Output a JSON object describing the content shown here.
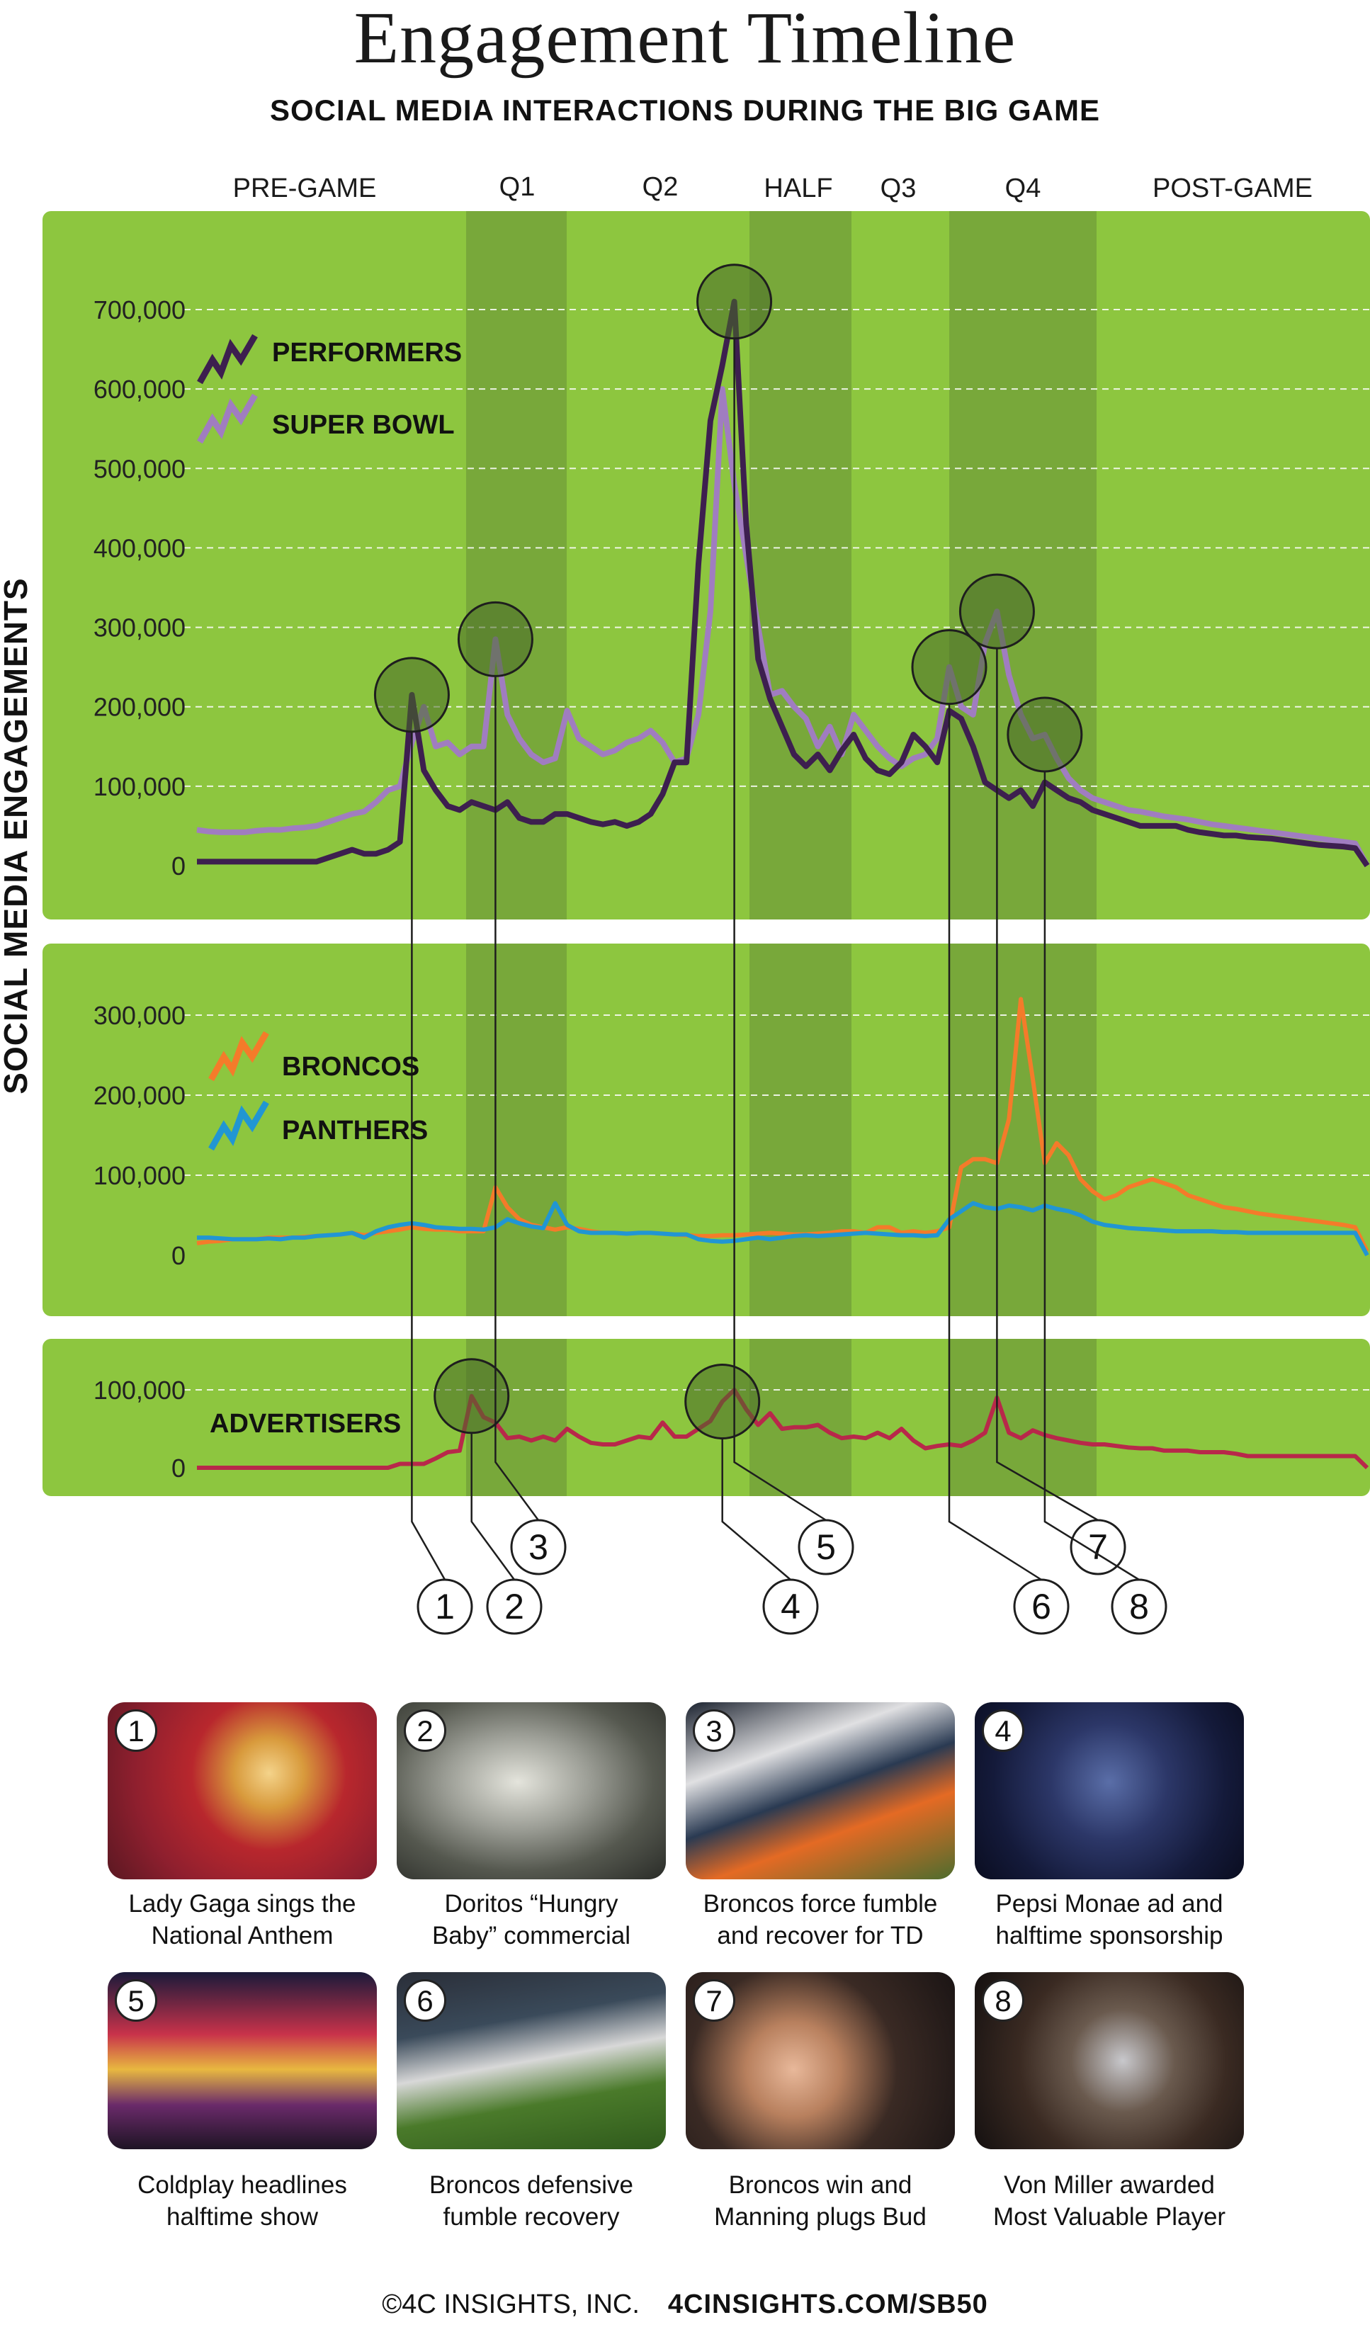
{
  "title": "Engagement Timeline",
  "subtitle": "SOCIAL MEDIA INTERACTIONS DURING THE BIG GAME",
  "y_axis_label": "SOCIAL MEDIA ENGAGEMENTS",
  "phases": [
    "PRE-GAME",
    "Q1",
    "Q2",
    "HALF",
    "Q3",
    "Q4",
    "POST-GAME"
  ],
  "colors": {
    "background_green": "#8dc63f",
    "band_green": "#78a83a",
    "performers": "#3d1f4f",
    "super_bowl": "#a07dc0",
    "broncos": "#f47b2a",
    "panthers": "#2196d3",
    "advertisers": "#b8284a"
  },
  "chart_data": [
    {
      "type": "line",
      "x": [
        0,
        1,
        2,
        3,
        4,
        5,
        6,
        7,
        8,
        9,
        10,
        11,
        12,
        13,
        14,
        15,
        16,
        17,
        18,
        19,
        20,
        21,
        22,
        23,
        24,
        25,
        26,
        27,
        28,
        29,
        30,
        31,
        32,
        33,
        34,
        35,
        36,
        37,
        38,
        39,
        40,
        41,
        42,
        43,
        44,
        45,
        46,
        47,
        48,
        49,
        50,
        51,
        52,
        53,
        54,
        55,
        56,
        57,
        58,
        59,
        60,
        61,
        62,
        63,
        64,
        65,
        66,
        67,
        68,
        69,
        70,
        71,
        72,
        73,
        74,
        75,
        76,
        77,
        78,
        79,
        80,
        81,
        82,
        83,
        84,
        85,
        86,
        87,
        88,
        89,
        90,
        91,
        92,
        93,
        94,
        95,
        96,
        97,
        98
      ],
      "series": [
        {
          "name": "PERFORMERS",
          "values": [
            5000,
            5000,
            5000,
            5000,
            5000,
            5000,
            5000,
            5000,
            5000,
            5000,
            5000,
            10000,
            15000,
            20000,
            15000,
            15000,
            20000,
            30000,
            215000,
            120000,
            95000,
            75000,
            70000,
            80000,
            75000,
            70000,
            80000,
            60000,
            55000,
            55000,
            65000,
            65000,
            60000,
            55000,
            52000,
            55000,
            50000,
            55000,
            65000,
            90000,
            130000,
            130000,
            380000,
            560000,
            630000,
            710000,
            430000,
            260000,
            210000,
            175000,
            140000,
            125000,
            140000,
            120000,
            145000,
            165000,
            135000,
            120000,
            115000,
            130000,
            165000,
            150000,
            130000,
            195000,
            185000,
            150000,
            105000,
            95000,
            85000,
            95000,
            75000,
            105000,
            95000,
            85000,
            80000,
            70000,
            65000,
            60000,
            55000,
            50000,
            50000,
            50000,
            50000,
            45000,
            42000,
            40000,
            38000,
            38000,
            36000,
            35000,
            34000,
            32000,
            30000,
            28000,
            26000,
            25000,
            24000,
            22000,
            0
          ]
        },
        {
          "name": "SUPER BOWL",
          "values": [
            45000,
            43000,
            42000,
            42000,
            42000,
            44000,
            45000,
            45000,
            47000,
            48000,
            50000,
            55000,
            60000,
            65000,
            68000,
            80000,
            95000,
            100000,
            155000,
            200000,
            150000,
            155000,
            140000,
            150000,
            150000,
            285000,
            190000,
            160000,
            140000,
            130000,
            135000,
            195000,
            160000,
            150000,
            140000,
            145000,
            155000,
            160000,
            170000,
            155000,
            130000,
            135000,
            190000,
            320000,
            600000,
            480000,
            390000,
            300000,
            215000,
            220000,
            200000,
            185000,
            150000,
            175000,
            140000,
            190000,
            170000,
            150000,
            135000,
            125000,
            135000,
            140000,
            160000,
            250000,
            200000,
            190000,
            280000,
            320000,
            240000,
            190000,
            160000,
            165000,
            135000,
            110000,
            95000,
            85000,
            80000,
            75000,
            70000,
            68000,
            65000,
            62000,
            60000,
            58000,
            55000,
            52000,
            50000,
            48000,
            46000,
            44000,
            42000,
            40000,
            38000,
            36000,
            34000,
            32000,
            30000,
            28000,
            0
          ]
        }
      ],
      "ylim": [
        0,
        750000
      ],
      "yticks": [
        "700,000",
        "600,000",
        "500,000",
        "400,000",
        "300,000",
        "200,000",
        "100,000",
        "0"
      ]
    },
    {
      "type": "line",
      "x": [
        0,
        1,
        2,
        3,
        4,
        5,
        6,
        7,
        8,
        9,
        10,
        11,
        12,
        13,
        14,
        15,
        16,
        17,
        18,
        19,
        20,
        21,
        22,
        23,
        24,
        25,
        26,
        27,
        28,
        29,
        30,
        31,
        32,
        33,
        34,
        35,
        36,
        37,
        38,
        39,
        40,
        41,
        42,
        43,
        44,
        45,
        46,
        47,
        48,
        49,
        50,
        51,
        52,
        53,
        54,
        55,
        56,
        57,
        58,
        59,
        60,
        61,
        62,
        63,
        64,
        65,
        66,
        67,
        68,
        69,
        70,
        71,
        72,
        73,
        74,
        75,
        76,
        77,
        78,
        79,
        80,
        81,
        82,
        83,
        84,
        85,
        86,
        87,
        88,
        89,
        90,
        91,
        92,
        93,
        94,
        95,
        96,
        97,
        98
      ],
      "series": [
        {
          "name": "BRONCOS",
          "values": [
            15000,
            17000,
            18000,
            20000,
            20000,
            20000,
            22000,
            22000,
            22000,
            23000,
            24000,
            25000,
            26000,
            28000,
            25000,
            28000,
            30000,
            32000,
            35000,
            33000,
            32000,
            32000,
            30000,
            30000,
            30000,
            85000,
            60000,
            45000,
            38000,
            35000,
            32000,
            35000,
            33000,
            30000,
            28000,
            28000,
            27000,
            28000,
            28000,
            27000,
            26000,
            25000,
            24000,
            24000,
            25000,
            25000,
            26000,
            27000,
            28000,
            27000,
            26000,
            26000,
            27000,
            28000,
            30000,
            30000,
            28000,
            35000,
            35000,
            28000,
            30000,
            28000,
            30000,
            35000,
            110000,
            120000,
            120000,
            115000,
            170000,
            320000,
            220000,
            115000,
            140000,
            125000,
            95000,
            80000,
            70000,
            75000,
            85000,
            90000,
            95000,
            90000,
            85000,
            75000,
            70000,
            65000,
            60000,
            58000,
            55000,
            52000,
            50000,
            48000,
            46000,
            44000,
            42000,
            40000,
            38000,
            35000,
            5000
          ]
        },
        {
          "name": "PANTHERS",
          "values": [
            22000,
            22000,
            21000,
            20000,
            20000,
            20000,
            21000,
            20000,
            22000,
            22000,
            24000,
            25000,
            26000,
            28000,
            22000,
            30000,
            35000,
            38000,
            40000,
            38000,
            35000,
            34000,
            33000,
            33000,
            32000,
            35000,
            45000,
            40000,
            36000,
            34000,
            65000,
            38000,
            30000,
            28000,
            28000,
            28000,
            27000,
            28000,
            28000,
            27000,
            26000,
            26000,
            20000,
            18000,
            17000,
            18000,
            20000,
            22000,
            20000,
            22000,
            24000,
            25000,
            24000,
            25000,
            26000,
            27000,
            28000,
            27000,
            26000,
            25000,
            25000,
            24000,
            25000,
            45000,
            55000,
            65000,
            60000,
            58000,
            62000,
            60000,
            56000,
            62000,
            58000,
            55000,
            50000,
            42000,
            38000,
            36000,
            34000,
            33000,
            32000,
            31000,
            30000,
            30000,
            30000,
            30000,
            29000,
            29000,
            28000,
            28000,
            28000,
            28000,
            28000,
            28000,
            28000,
            28000,
            28000,
            28000,
            0
          ]
        }
      ],
      "ylim": [
        0,
        340000
      ],
      "yticks": [
        "300,000",
        "200,000",
        "100,000",
        "0"
      ]
    },
    {
      "type": "line",
      "x": [
        0,
        1,
        2,
        3,
        4,
        5,
        6,
        7,
        8,
        9,
        10,
        11,
        12,
        13,
        14,
        15,
        16,
        17,
        18,
        19,
        20,
        21,
        22,
        23,
        24,
        25,
        26,
        27,
        28,
        29,
        30,
        31,
        32,
        33,
        34,
        35,
        36,
        37,
        38,
        39,
        40,
        41,
        42,
        43,
        44,
        45,
        46,
        47,
        48,
        49,
        50,
        51,
        52,
        53,
        54,
        55,
        56,
        57,
        58,
        59,
        60,
        61,
        62,
        63,
        64,
        65,
        66,
        67,
        68,
        69,
        70,
        71,
        72,
        73,
        74,
        75,
        76,
        77,
        78,
        79,
        80,
        81,
        82,
        83,
        84,
        85,
        86,
        87,
        88,
        89,
        90,
        91,
        92,
        93,
        94,
        95,
        96,
        97,
        98
      ],
      "series": [
        {
          "name": "ADVERTISERS",
          "values": [
            0,
            0,
            0,
            0,
            0,
            0,
            0,
            0,
            0,
            0,
            0,
            0,
            0,
            0,
            0,
            0,
            0,
            5000,
            5000,
            5000,
            12000,
            20000,
            22000,
            92000,
            65000,
            58000,
            38000,
            40000,
            35000,
            40000,
            35000,
            50000,
            40000,
            32000,
            30000,
            30000,
            35000,
            40000,
            38000,
            58000,
            40000,
            40000,
            50000,
            60000,
            85000,
            100000,
            75000,
            55000,
            70000,
            50000,
            52000,
            52000,
            55000,
            45000,
            38000,
            40000,
            38000,
            45000,
            38000,
            50000,
            35000,
            25000,
            28000,
            30000,
            28000,
            35000,
            45000,
            90000,
            45000,
            38000,
            48000,
            42000,
            38000,
            35000,
            32000,
            30000,
            30000,
            28000,
            26000,
            25000,
            25000,
            22000,
            22000,
            22000,
            20000,
            20000,
            20000,
            18000,
            15000,
            15000,
            15000,
            15000,
            15000,
            15000,
            15000,
            15000,
            15000,
            15000,
            0
          ]
        }
      ],
      "ylim": [
        0,
        125000
      ],
      "yticks": [
        "100,000",
        "0"
      ]
    }
  ],
  "markers": [
    {
      "label": "1",
      "index": 18,
      "panel": 0
    },
    {
      "label": "2",
      "index": 23,
      "panel": 2
    },
    {
      "label": "3",
      "index": 25,
      "panel": 0
    },
    {
      "label": "4",
      "index": 44,
      "panel": 2
    },
    {
      "label": "5",
      "index": 45,
      "panel": 0
    },
    {
      "label": "6",
      "index": 63,
      "panel": 0
    },
    {
      "label": "7",
      "index": 67,
      "panel": 0
    },
    {
      "label": "8",
      "index": 71,
      "panel": 0
    }
  ],
  "events": [
    {
      "number": "1",
      "caption_line1": "Lady Gaga sings the",
      "caption_line2": "National Anthem"
    },
    {
      "number": "2",
      "caption_line1": "Doritos “Hungry",
      "caption_line2": "Baby” commercial"
    },
    {
      "number": "3",
      "caption_line1": "Broncos force fumble",
      "caption_line2": "and recover for TD"
    },
    {
      "number": "4",
      "caption_line1": "Pepsi Monae ad and",
      "caption_line2": "halftime sponsorship"
    },
    {
      "number": "5",
      "caption_line1": "Coldplay headlines",
      "caption_line2": "halftime show"
    },
    {
      "number": "6",
      "caption_line1": "Broncos defensive",
      "caption_line2": "fumble recovery"
    },
    {
      "number": "7",
      "caption_line1": "Broncos win and",
      "caption_line2": "Manning plugs Bud"
    },
    {
      "number": "8",
      "caption_line1": "Von Miller awarded",
      "caption_line2": "Most Valuable Player"
    }
  ],
  "footer": {
    "copyright": "©4C INSIGHTS, INC.",
    "site": "4CINSIGHTS.COM/SB50"
  }
}
